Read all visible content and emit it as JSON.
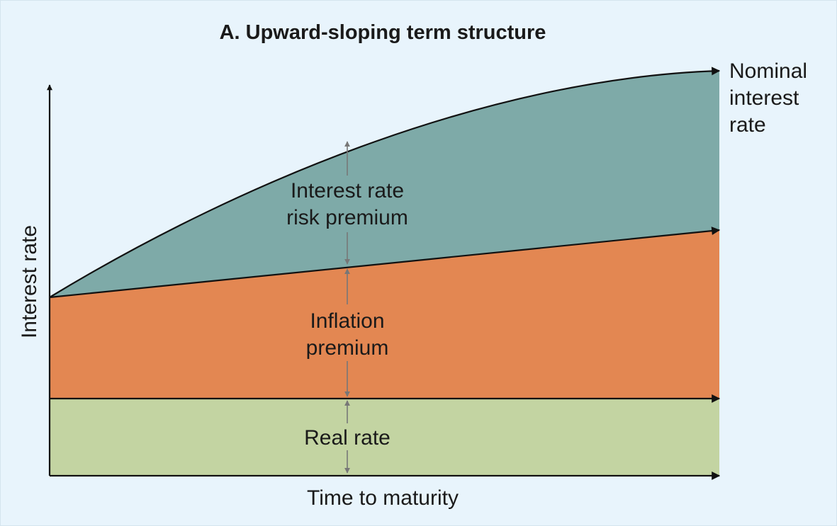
{
  "title": "A. Upward-sloping term structure",
  "axes": {
    "y_label": "Interest rate",
    "x_label": "Time to maturity"
  },
  "curve_label": [
    "Nominal",
    "interest",
    "rate"
  ],
  "regions": {
    "risk_premium": [
      "Interest rate",
      "risk premium"
    ],
    "inflation_premium": [
      "Inflation",
      "premium"
    ],
    "real_rate": [
      "Real rate"
    ]
  }
}
